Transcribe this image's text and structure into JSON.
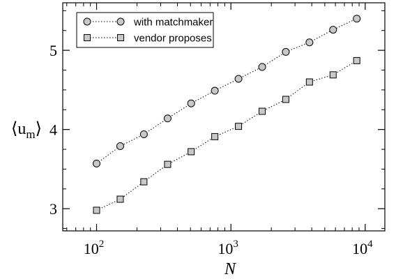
{
  "chart_data": {
    "type": "scatter",
    "xscale": "log",
    "xlim": [
      56,
      14000
    ],
    "ylim": [
      2.72,
      5.6
    ],
    "xlabel": "N",
    "ylabel_main": "⟨u",
    "ylabel_sub": "m",
    "ylabel_close": "⟩",
    "xticks": [
      {
        "value": 100,
        "base": "10",
        "exp": "2"
      },
      {
        "value": 1000,
        "base": "10",
        "exp": "3"
      },
      {
        "value": 10000,
        "base": "10",
        "exp": "4"
      }
    ],
    "yticks": [
      {
        "value": 3,
        "label": "3"
      },
      {
        "value": 4,
        "label": "4"
      },
      {
        "value": 5,
        "label": "5"
      }
    ],
    "legend_position": "top-left",
    "grid": false,
    "series": [
      {
        "name": "with matchmaker",
        "marker": "circle",
        "line": "dotted",
        "color": "#c8c8c8",
        "x": [
          100,
          150,
          225,
          338,
          506,
          759,
          1139,
          1709,
          2563,
          3844,
          5767,
          8650
        ],
        "y": [
          3.57,
          3.79,
          3.94,
          4.14,
          4.33,
          4.49,
          4.64,
          4.79,
          4.98,
          5.1,
          5.26,
          5.4
        ]
      },
      {
        "name": "vendor proposes",
        "marker": "square",
        "line": "dotted",
        "color": "#c8c8c8",
        "x": [
          100,
          150,
          225,
          338,
          506,
          759,
          1139,
          1709,
          2563,
          3844,
          5767,
          8650
        ],
        "y": [
          2.98,
          3.12,
          3.34,
          3.56,
          3.72,
          3.91,
          4.04,
          4.23,
          4.38,
          4.6,
          4.69,
          4.87
        ]
      }
    ]
  }
}
